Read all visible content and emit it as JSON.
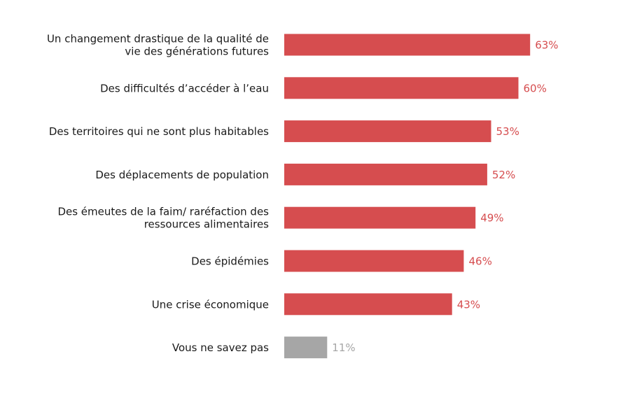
{
  "chart_data": {
    "type": "bar",
    "orientation": "horizontal",
    "title": "",
    "xlabel": "",
    "ylabel": "",
    "xlim": [
      0,
      100
    ],
    "grid": false,
    "legend": "none",
    "categories": [
      [
        "Un changement drastique de la qualité de",
        "vie des générations futures"
      ],
      [
        "Des difficultés d’accéder à l’eau"
      ],
      [
        "Des territoires qui ne sont plus habitables"
      ],
      [
        "Des déplacements de population"
      ],
      [
        "Des émeutes de la faim/ raréfaction des",
        "ressources alimentaires"
      ],
      [
        "Des épidémies"
      ],
      [
        "Une crise économique"
      ],
      [
        "Vous ne savez pas"
      ]
    ],
    "values": [
      63,
      60,
      53,
      52,
      49,
      46,
      43,
      11
    ],
    "value_labels": [
      "63%",
      "60%",
      "53%",
      "52%",
      "49%",
      "46%",
      "43%",
      "11%"
    ],
    "bar_colors": [
      "#d64d4f",
      "#d64d4f",
      "#d64d4f",
      "#d64d4f",
      "#d64d4f",
      "#d64d4f",
      "#d64d4f",
      "#a6a6a6"
    ],
    "value_label_colors": [
      "#d64d4f",
      "#d64d4f",
      "#d64d4f",
      "#d64d4f",
      "#d64d4f",
      "#d64d4f",
      "#d64d4f",
      "#a6a6a6"
    ],
    "category_label_color": "#1a1a1a"
  }
}
